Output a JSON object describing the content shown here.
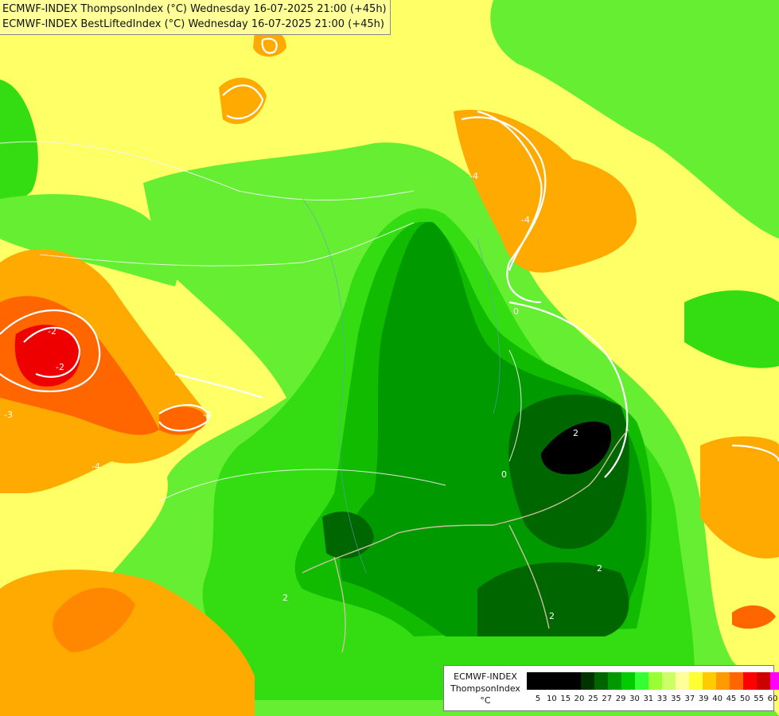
{
  "title": {
    "line1": "ECMWF-INDEX ThompsonIndex (°C) Wednesday 16-07-2025 21:00 (+45h)",
    "line2": "ECMWF-INDEX BestLiftedIndex (°C) Wednesday 16-07-2025 21:00 (+45h)"
  },
  "legend": {
    "line1": "ECMWF-INDEX",
    "line2": "ThompsonIndex",
    "unit": "°C",
    "ticks": [
      "5",
      "10",
      "15",
      "20",
      "25",
      "27",
      "29",
      "30",
      "31",
      "33",
      "35",
      "37",
      "39",
      "40",
      "45",
      "50",
      "55",
      "60"
    ],
    "colors": [
      "#000000",
      "#003300",
      "#006600",
      "#009900",
      "#00cc00",
      "#33ff33",
      "#99ff33",
      "#ccff66",
      "#ffff99",
      "#ffff33",
      "#ffcc00",
      "#ff9900",
      "#ff6600",
      "#ff0000",
      "#cc0000",
      "#ff00ff",
      "#cc00ff",
      "#9900ff",
      "#6600ff",
      "#0000ff"
    ]
  },
  "contour_labels": [
    "-2",
    "-2",
    "-4",
    "-4",
    "-3",
    "-4",
    "-4",
    "0",
    "2",
    "2",
    "2",
    "2",
    "0"
  ]
}
